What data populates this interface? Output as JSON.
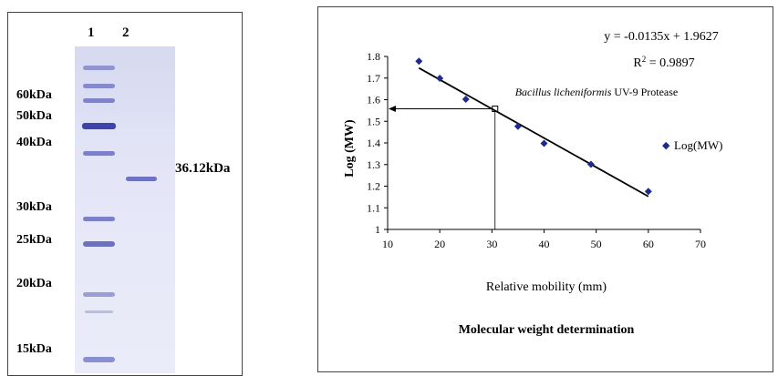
{
  "gel": {
    "lane_labels": [
      "1",
      "2"
    ],
    "marker_labels": [
      "60kDa",
      "50kDa",
      "40kDa",
      "30kDa",
      "25kDa",
      "20kDa",
      "15kDa"
    ],
    "sample_band_label": "36.12kDa"
  },
  "chart_data": {
    "type": "scatter",
    "xlabel": "Relative mobility (mm)",
    "ylabel": "Log (MW)",
    "caption": "Molecular weight determination",
    "xlim": [
      10,
      70
    ],
    "ylim": [
      1,
      1.8
    ],
    "x_ticks": [
      "10",
      "20",
      "30",
      "40",
      "50",
      "60",
      "70"
    ],
    "y_ticks": [
      "1",
      "1.1",
      "1.2",
      "1.3",
      "1.4",
      "1.5",
      "1.6",
      "1.7",
      "1.8"
    ],
    "series": [
      {
        "name": "Log(MW)",
        "x": [
          16,
          20,
          25,
          35,
          40,
          49,
          60
        ],
        "y": [
          1.778,
          1.699,
          1.602,
          1.477,
          1.398,
          1.301,
          1.176
        ]
      }
    ],
    "trendline": {
      "slope": -0.0135,
      "intercept": 1.9627,
      "x_range": [
        16,
        60
      ],
      "equation": "y = -0.0135x + 1.9627",
      "r2_prefix": "R",
      "r2_sup": "2",
      "r2_value": " = 0.9897"
    },
    "unknown_point": {
      "x": 30.6,
      "y": 1.558
    },
    "annotation_species": "Bacillus licheniformis",
    "annotation_rest": " UV-9 Protease",
    "legend_marker": "◆",
    "legend_label": "Log(MW)",
    "colors": {
      "marker": "#1f2b8c",
      "line": "#000000"
    }
  }
}
